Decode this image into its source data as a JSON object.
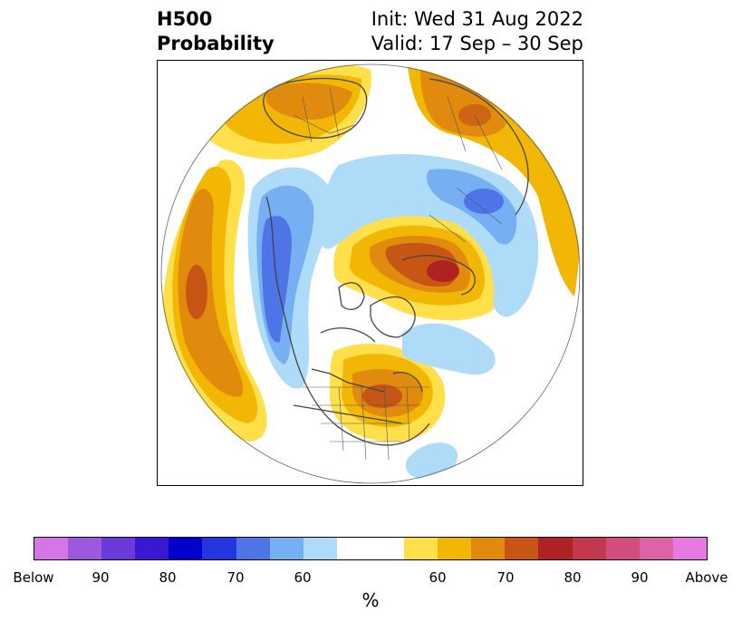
{
  "title": {
    "left_line1": "H500",
    "left_line2": "Probability",
    "right_line1": "Init: Wed 31 Aug 2022",
    "right_line2": "Valid: 17 Sep – 30 Sep"
  },
  "map": {
    "projection": "north-polar-stereographic",
    "variable": "500 hPa geopotential height probability"
  },
  "colorbar": {
    "unit": "%",
    "colors": [
      "#d675e8",
      "#9b59dd",
      "#6b3ad8",
      "#3a17d2",
      "#0000cc",
      "#2437dc",
      "#4f74e6",
      "#77b0f2",
      "#aedcf8",
      "#ffffff",
      "#ffe04a",
      "#f2b705",
      "#e08a0e",
      "#c65516",
      "#ae2222",
      "#c3384c",
      "#d14e7f",
      "#dd62a6",
      "#e879e2"
    ],
    "tick_labels": [
      "Below",
      "90",
      "80",
      "70",
      "60",
      "60",
      "70",
      "80",
      "90",
      "Above"
    ]
  }
}
